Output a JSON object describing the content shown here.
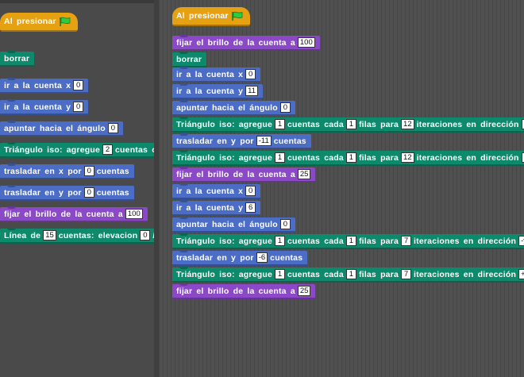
{
  "palette": {
    "hat_label": "Al presionar",
    "clear": "borrar",
    "goto_x": {
      "label": "ir a la cuenta x",
      "value": "0"
    },
    "goto_y": {
      "label": "ir a la cuenta y",
      "value": "0"
    },
    "point": {
      "label": "apuntar hacia el ángulo",
      "value": "0"
    },
    "triangle": {
      "pre": "Triángulo iso: agregue",
      "value": "2",
      "post": "cuentas cad"
    },
    "move_x": {
      "pre": "trasladar en x por",
      "value": "0",
      "post": "cuentas"
    },
    "move_y": {
      "pre": "trasladar en y por",
      "value": "0",
      "post": "cuentas"
    },
    "brightness": {
      "label": "fijar el brillo de la cuenta a",
      "value": "100"
    },
    "line": {
      "pre": "Línea de",
      "value1": "15",
      "mid": "cuentas: elevacion",
      "value2": "0",
      "post": "/ a"
    }
  },
  "script": {
    "hat_label": "Al presionar",
    "b1": {
      "label": "fijar el brillo de la cuenta a",
      "value": "100"
    },
    "b2": "borrar",
    "b3": {
      "label": "ir a la cuenta x",
      "value": "0"
    },
    "b4": {
      "label": "ir a la cuenta y",
      "value": "11"
    },
    "b5": {
      "label": "apuntar hacia el ángulo",
      "value": "0"
    },
    "b6": {
      "pre": "Triángulo iso: agregue",
      "v1": "1",
      "a": "cuentas cada",
      "v2": "1",
      "b": "filas para",
      "v3": "12",
      "c": "iteraciones en dirección",
      "v4": "-y"
    },
    "b7": {
      "pre": "trasladar en y por",
      "value": "-11",
      "post": "cuentas"
    },
    "b8": {
      "pre": "Triángulo iso: agregue",
      "v1": "1",
      "a": "cuentas cada",
      "v2": "1",
      "b": "filas para",
      "v3": "12",
      "c": "iteraciones en dirección",
      "v4": "+y"
    },
    "b9": {
      "label": "fijar el brillo de la cuenta a",
      "value": "25"
    },
    "b10": {
      "label": "ir a la cuenta x",
      "value": "0"
    },
    "b11": {
      "label": "ir a la cuenta y",
      "value": "6"
    },
    "b12": {
      "label": "apuntar hacia el ángulo",
      "value": "0"
    },
    "b13": {
      "pre": "Triángulo iso: agregue",
      "v1": "1",
      "a": "cuentas cada",
      "v2": "1",
      "b": "filas para",
      "v3": "7",
      "c": "iteraciones en dirección",
      "v4": "-y"
    },
    "b14": {
      "pre": "trasladar en y por",
      "value": "-6",
      "post": "cuentas"
    },
    "b15": {
      "pre": "Triángulo iso: agregue",
      "v1": "1",
      "a": "cuentas cada",
      "v2": "1",
      "b": "filas para",
      "v3": "7",
      "c": "iteraciones en dirección",
      "v4": "+y"
    },
    "b16": {
      "label": "fijar el brillo de la cuenta a",
      "value": "25"
    }
  },
  "colors": {
    "motion": "#4c6dc5",
    "pen": "#0d8a6b",
    "looks": "#8b48c7",
    "events": "#e6a112",
    "flag": "#2ecc40"
  },
  "icons": {
    "hat_icon": "green-flag-icon"
  }
}
